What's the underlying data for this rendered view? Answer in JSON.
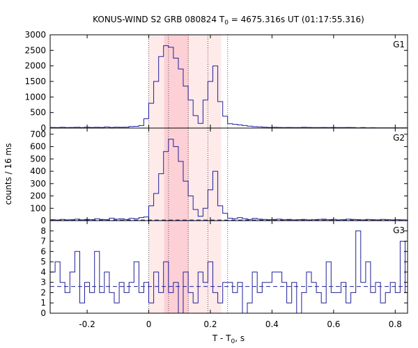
{
  "chart_data": {
    "type": "line",
    "title": "KONUS-WIND S2 GRB 080824 T",
    "title_sub": "0",
    "title_rest": " = 4675.316s UT (01:17:55.316)",
    "xlabel": "T - T",
    "xlabel_sub": "0",
    "xlabel_rest": ", s",
    "ylabel": "counts / 16 ms",
    "xlim": [
      -0.32,
      0.84
    ],
    "x_ticks": [
      -0.2,
      0,
      0.2,
      0.4,
      0.6,
      0.8
    ],
    "x_tick_labels": [
      "-0.2",
      "0",
      "0.2",
      "0.4",
      "0.6",
      "0.8"
    ],
    "grid": false,
    "colors": {
      "series": "#1f1f9a",
      "background_band": "#ffeaea",
      "main_band": "#fdd0d6",
      "marker_lines": "#555555",
      "axes": "#000000"
    },
    "shaded_intervals": [
      {
        "kind": "light",
        "from": 0.0,
        "to": 0.235
      },
      {
        "kind": "dark",
        "from": 0.05,
        "to": 0.13
      }
    ],
    "marker_lines_x": [
      0.0,
      0.064,
      0.128,
      0.192,
      0.256
    ],
    "panels": [
      {
        "name": "G1",
        "ylim": [
          0,
          3000
        ],
        "y_ticks": [
          0,
          500,
          1000,
          1500,
          2000,
          2500,
          3000
        ],
        "y_tick_labels": [
          "0",
          "500",
          "1000",
          "1500",
          "2000",
          "2500",
          "3000"
        ],
        "step": 0.016,
        "x": [
          -0.32,
          -0.304,
          -0.288,
          -0.272,
          -0.256,
          -0.24,
          -0.224,
          -0.208,
          -0.192,
          -0.176,
          -0.16,
          -0.144,
          -0.128,
          -0.112,
          -0.096,
          -0.08,
          -0.064,
          -0.048,
          -0.032,
          -0.016,
          0.0,
          0.016,
          0.032,
          0.048,
          0.064,
          0.08,
          0.096,
          0.112,
          0.128,
          0.144,
          0.16,
          0.176,
          0.192,
          0.208,
          0.224,
          0.24,
          0.256,
          0.272,
          0.288,
          0.304,
          0.32,
          0.336,
          0.352,
          0.368,
          0.384,
          0.4,
          0.416,
          0.432,
          0.448,
          0.464,
          0.48,
          0.496,
          0.512,
          0.528,
          0.544,
          0.56,
          0.576,
          0.592,
          0.608,
          0.624,
          0.64,
          0.656,
          0.672,
          0.688,
          0.704,
          0.72,
          0.736,
          0.752,
          0.768,
          0.784,
          0.8,
          0.816,
          0.832
        ],
        "values": [
          20,
          15,
          25,
          18,
          20,
          25,
          15,
          30,
          20,
          25,
          20,
          35,
          20,
          30,
          25,
          30,
          50,
          55,
          80,
          300,
          800,
          1500,
          2300,
          2650,
          2600,
          2250,
          1900,
          1350,
          900,
          400,
          150,
          900,
          1500,
          2000,
          850,
          380,
          140,
          120,
          100,
          80,
          60,
          45,
          40,
          30,
          20,
          25,
          20,
          15,
          20,
          18,
          15,
          25,
          20,
          15,
          18,
          20,
          15,
          20,
          15,
          18,
          20,
          15,
          10,
          15,
          10,
          12,
          10,
          10,
          8,
          10,
          10,
          8,
          10
        ]
      },
      {
        "name": "G2",
        "ylim": [
          0,
          750
        ],
        "y_ticks": [
          0,
          100,
          200,
          300,
          400,
          500,
          600,
          700
        ],
        "y_tick_labels": [
          "0",
          "100",
          "200",
          "300",
          "400",
          "500",
          "600",
          "700"
        ],
        "step": 0.016,
        "mean": 5,
        "x": [
          -0.32,
          -0.304,
          -0.288,
          -0.272,
          -0.256,
          -0.24,
          -0.224,
          -0.208,
          -0.192,
          -0.176,
          -0.16,
          -0.144,
          -0.128,
          -0.112,
          -0.096,
          -0.08,
          -0.064,
          -0.048,
          -0.032,
          -0.016,
          0.0,
          0.016,
          0.032,
          0.048,
          0.064,
          0.08,
          0.096,
          0.112,
          0.128,
          0.144,
          0.16,
          0.176,
          0.192,
          0.208,
          0.224,
          0.24,
          0.256,
          0.272,
          0.288,
          0.304,
          0.32,
          0.336,
          0.352,
          0.368,
          0.384,
          0.4,
          0.416,
          0.432,
          0.448,
          0.464,
          0.48,
          0.496,
          0.512,
          0.528,
          0.544,
          0.56,
          0.576,
          0.592,
          0.608,
          0.624,
          0.64,
          0.656,
          0.672,
          0.688,
          0.704,
          0.72,
          0.736,
          0.752,
          0.768,
          0.784,
          0.8,
          0.816,
          0.832
        ],
        "values": [
          8,
          5,
          10,
          6,
          8,
          12,
          6,
          10,
          8,
          15,
          10,
          8,
          20,
          12,
          15,
          10,
          18,
          15,
          25,
          30,
          120,
          220,
          380,
          560,
          660,
          600,
          480,
          320,
          200,
          90,
          35,
          100,
          250,
          400,
          120,
          60,
          20,
          15,
          25,
          15,
          10,
          18,
          12,
          10,
          8,
          10,
          12,
          8,
          10,
          6,
          8,
          10,
          6,
          8,
          10,
          12,
          8,
          10,
          6,
          8,
          12,
          10,
          8,
          6,
          10,
          8,
          6,
          10,
          8,
          6,
          8,
          6,
          5
        ]
      },
      {
        "name": "G3",
        "ylim": [
          0,
          9
        ],
        "y_ticks": [
          0,
          1,
          2,
          3,
          4,
          5,
          6,
          7,
          8
        ],
        "y_tick_labels": [
          "0",
          "1",
          "2",
          "3",
          "4",
          "5",
          "6",
          "7",
          "8"
        ],
        "step": 0.016,
        "mean": 2.6,
        "x": [
          -0.32,
          -0.304,
          -0.288,
          -0.272,
          -0.256,
          -0.24,
          -0.224,
          -0.208,
          -0.192,
          -0.176,
          -0.16,
          -0.144,
          -0.128,
          -0.112,
          -0.096,
          -0.08,
          -0.064,
          -0.048,
          -0.032,
          -0.016,
          0.0,
          0.016,
          0.032,
          0.048,
          0.064,
          0.08,
          0.096,
          0.112,
          0.128,
          0.144,
          0.16,
          0.176,
          0.192,
          0.208,
          0.224,
          0.24,
          0.256,
          0.272,
          0.288,
          0.304,
          0.32,
          0.336,
          0.352,
          0.368,
          0.384,
          0.4,
          0.416,
          0.432,
          0.448,
          0.464,
          0.48,
          0.496,
          0.512,
          0.528,
          0.544,
          0.56,
          0.576,
          0.592,
          0.608,
          0.624,
          0.64,
          0.656,
          0.672,
          0.688,
          0.704,
          0.72,
          0.736,
          0.752,
          0.768,
          0.784,
          0.8,
          0.816,
          0.832
        ],
        "values": [
          4,
          5,
          3,
          2,
          4,
          6,
          1,
          3,
          2,
          6,
          2,
          4,
          2,
          1,
          3,
          2,
          3,
          5,
          2,
          3,
          1,
          4,
          2,
          5,
          2,
          3,
          0,
          4,
          2,
          1,
          4,
          3,
          5,
          2,
          1,
          3,
          3,
          2,
          3,
          0,
          1,
          4,
          2,
          3,
          3,
          4,
          4,
          3,
          1,
          3,
          0,
          2,
          4,
          3,
          2,
          1,
          5,
          2,
          2,
          3,
          1,
          2,
          8,
          3,
          5,
          2,
          3,
          1,
          2,
          3,
          2,
          7,
          2
        ]
      }
    ]
  }
}
